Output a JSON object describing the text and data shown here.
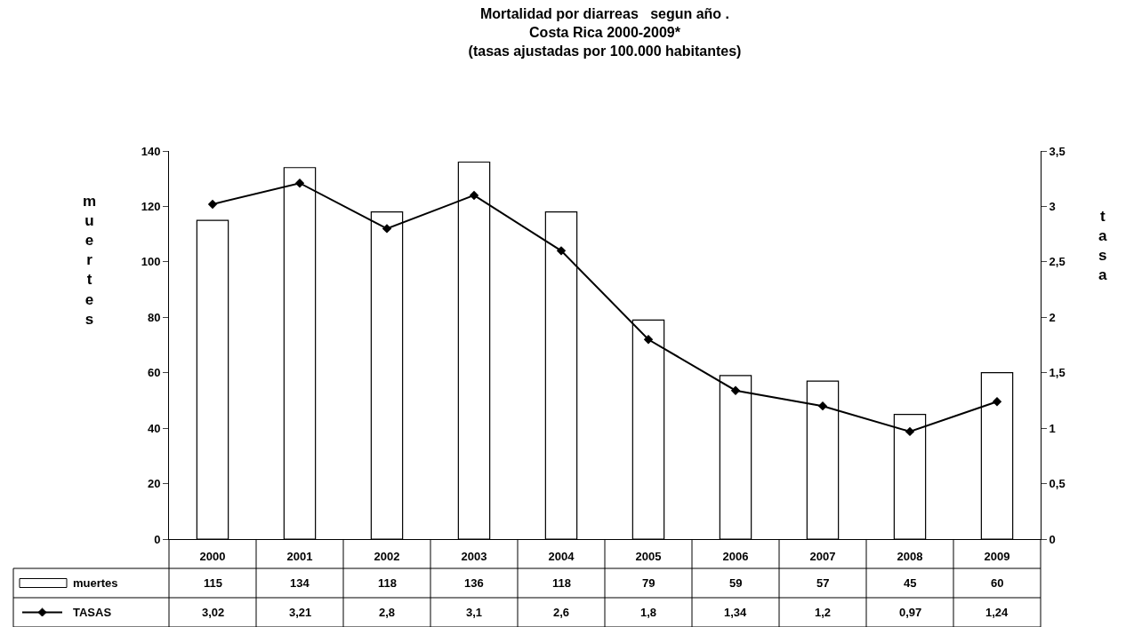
{
  "chart_data": {
    "type": "bar",
    "title": "Mortalidad por diarreas   segun año .\nCosta Rica 2000-2009*\n(tasas ajustadas por 100.000 habitantes)",
    "ylabel": "muertes",
    "y2label": "tasa",
    "categories": [
      "2000",
      "2001",
      "2002",
      "2003",
      "2004",
      "2005",
      "2006",
      "2007",
      "2008",
      "2009"
    ],
    "series": [
      {
        "name": "muertes",
        "color": "#ffffff",
        "values": [
          115,
          134,
          118,
          136,
          118,
          79,
          59,
          57,
          45,
          60
        ],
        "value_labels": [
          "115",
          "134",
          "118",
          "136",
          "118",
          "79",
          "59",
          "57",
          "45",
          "60"
        ]
      },
      {
        "name": "TASAS",
        "type": "line",
        "axis": "y2",
        "color": "#000000",
        "marker": "diamond",
        "values": [
          3.02,
          3.21,
          2.8,
          3.1,
          2.6,
          1.8,
          1.34,
          1.2,
          0.97,
          1.24
        ],
        "value_labels": [
          "3,02",
          "3,21",
          "2,8",
          "3,1",
          "2,6",
          "1,8",
          "1,34",
          "1,2",
          "0,97",
          "1,24"
        ]
      }
    ],
    "legend": "bottom left",
    "ylim": [
      0,
      140
    ],
    "yticks": [
      0,
      20,
      40,
      60,
      80,
      100,
      120,
      140
    ],
    "y2lim": [
      0,
      3.5
    ],
    "y2ticks": [
      0,
      {
        "value": 0.5,
        "label": "0,5"
      },
      1,
      {
        "value": 1.5,
        "label": "1,5"
      },
      2,
      {
        "value": 2.5,
        "label": "2,5"
      },
      3,
      {
        "value": 3.5,
        "label": "3,5"
      }
    ]
  }
}
